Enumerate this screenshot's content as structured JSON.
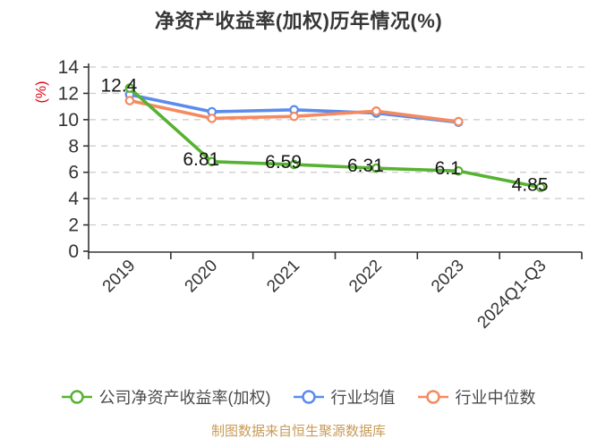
{
  "chart_data": {
    "type": "line",
    "title": "净资产收益率(加权)历年情况(%)",
    "y_axis_name": "(%)",
    "y_axis_name_color": "#e60012",
    "ylim": [
      0,
      14
    ],
    "yticks": [
      0,
      2,
      4,
      6,
      8,
      10,
      12,
      14
    ],
    "grid": "horizontal dashed",
    "legend_position": "bottom",
    "categories": [
      "2019",
      "2020",
      "2021",
      "2022",
      "2023",
      "2024Q1-Q3"
    ],
    "series": [
      {
        "key": "company-roe",
        "name": "公司净资产收益率(加权)",
        "color": "#56b232",
        "values": [
          12.4,
          6.81,
          6.59,
          6.31,
          6.1,
          4.85
        ],
        "point_labels": [
          "12.4",
          "6.81",
          "6.59",
          "6.31",
          "6.1",
          "4.85"
        ]
      },
      {
        "key": "industry-avg",
        "name": "行业均值",
        "color": "#5b8cec",
        "values": [
          11.9,
          10.6,
          10.75,
          10.5,
          9.8,
          null
        ]
      },
      {
        "key": "industry-median",
        "name": "行业中位数",
        "color": "#f58a60",
        "values": [
          11.45,
          10.1,
          10.25,
          10.65,
          9.85,
          null
        ]
      }
    ]
  },
  "footer": {
    "text": "制图数据来自恒生聚源数据库",
    "color": "#c89b57"
  }
}
